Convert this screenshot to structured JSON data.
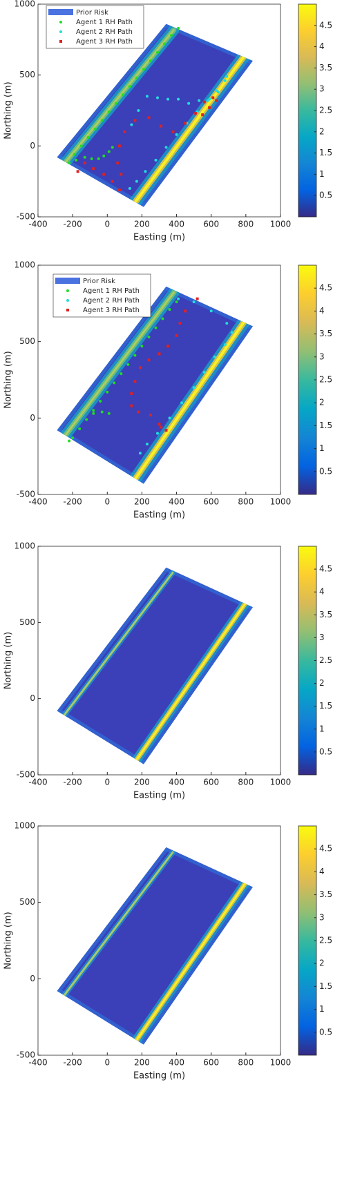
{
  "chart_data": [
    {
      "type": "heatmap",
      "xlabel": "Easting (m)",
      "ylabel": "Northing (m)",
      "xlim": [
        -400,
        1000
      ],
      "xticks": [
        -400,
        -200,
        0,
        200,
        400,
        600,
        800,
        1000
      ],
      "ylim": [
        -500,
        1000
      ],
      "yticks": [
        -500,
        0,
        500,
        1000
      ],
      "clim": [
        0,
        5
      ],
      "cticks": [
        0.5,
        1,
        1.5,
        2,
        2.5,
        3,
        3.5,
        4,
        4.5
      ],
      "legend": "upper left",
      "field": {
        "name": "Prior Risk",
        "color": "#4a72e0",
        "x": [
          -290,
          210,
          840,
          340
        ],
        "y": [
          -80,
          -430,
          600,
          860
        ]
      },
      "series": [
        {
          "name": "Agent 1 RH Path",
          "color": "#22dd22",
          "marker": "circle",
          "x": [
            410,
            370,
            330,
            290,
            250,
            210,
            170,
            130,
            90,
            50,
            10,
            -30,
            -70,
            -110,
            -150,
            -190,
            -220,
            -180,
            -130,
            -90,
            -50,
            -20,
            10,
            30
          ],
          "y": [
            830,
            780,
            720,
            660,
            600,
            540,
            480,
            420,
            360,
            300,
            240,
            180,
            120,
            60,
            0,
            -60,
            -120,
            -100,
            -80,
            -90,
            -90,
            -70,
            -40,
            -10
          ]
        },
        {
          "name": "Agent 2 RH Path",
          "color": "#22dddd",
          "marker": "circle",
          "x": [
            130,
            170,
            220,
            280,
            340,
            400,
            460,
            520,
            580,
            630,
            680,
            690,
            640,
            590,
            530,
            470,
            410,
            350,
            290,
            230,
            180,
            140
          ],
          "y": [
            -300,
            -250,
            -180,
            -100,
            -10,
            80,
            160,
            240,
            320,
            390,
            460,
            490,
            380,
            330,
            320,
            300,
            330,
            330,
            340,
            350,
            250,
            150
          ]
        },
        {
          "name": "Agent 3 RH Path",
          "color": "#dd2222",
          "marker": "square",
          "x": [
            -170,
            -130,
            -80,
            -20,
            30,
            70,
            80,
            60,
            70,
            100,
            160,
            240,
            310,
            380,
            450,
            510,
            560,
            610,
            630,
            590,
            550
          ],
          "y": [
            -180,
            -120,
            -160,
            -200,
            -250,
            -310,
            -200,
            -120,
            0,
            100,
            180,
            200,
            140,
            100,
            160,
            230,
            310,
            340,
            320,
            270,
            220
          ]
        }
      ]
    },
    {
      "type": "heatmap",
      "xlabel": "Easting (m)",
      "ylabel": "Northing (m)",
      "xlim": [
        -400,
        1000
      ],
      "xticks": [
        -400,
        -200,
        0,
        200,
        400,
        600,
        800,
        1000
      ],
      "ylim": [
        -500,
        1000
      ],
      "yticks": [
        -500,
        0,
        500,
        1000
      ],
      "clim": [
        0,
        5
      ],
      "cticks": [
        0.5,
        1,
        1.5,
        2,
        2.5,
        3,
        3.5,
        4,
        4.5
      ],
      "legend": "upper left",
      "field": {
        "name": "Prior Risk",
        "color": "#4a72e0",
        "x": [
          -290,
          210,
          840,
          340
        ],
        "y": [
          -80,
          -430,
          600,
          860
        ]
      },
      "series": [
        {
          "name": "Agent 1 RH Path",
          "color": "#22dd22",
          "marker": "circle",
          "x": [
            400,
            360,
            320,
            280,
            240,
            200,
            160,
            120,
            80,
            40,
            0,
            -40,
            -80,
            -120,
            -160,
            -200,
            -220,
            -80,
            -30,
            10
          ],
          "y": [
            760,
            710,
            650,
            590,
            530,
            470,
            410,
            350,
            290,
            230,
            170,
            110,
            50,
            -10,
            -70,
            -130,
            -150,
            30,
            40,
            30
          ]
        },
        {
          "name": "Agent 2 RH Path",
          "color": "#22dddd",
          "marker": "circle",
          "x": [
            410,
            500,
            600,
            690,
            720,
            680,
            620,
            560,
            500,
            430,
            360,
            290,
            230,
            190
          ],
          "y": [
            780,
            760,
            700,
            620,
            560,
            480,
            400,
            300,
            200,
            100,
            0,
            -100,
            -170,
            -230
          ]
        },
        {
          "name": "Agent 3 RH Path",
          "color": "#dd2222",
          "marker": "square",
          "x": [
            520,
            450,
            420,
            400,
            350,
            300,
            240,
            190,
            160,
            140,
            140,
            180,
            250,
            300,
            340,
            310
          ],
          "y": [
            780,
            700,
            620,
            540,
            470,
            420,
            380,
            330,
            240,
            160,
            80,
            40,
            20,
            -40,
            -80,
            -60
          ]
        }
      ]
    },
    {
      "type": "heatmap",
      "xlabel": "Easting (m)",
      "ylabel": "Northing (m)",
      "xlim": [
        -400,
        1000
      ],
      "xticks": [
        -400,
        -200,
        0,
        200,
        400,
        600,
        800,
        1000
      ],
      "ylim": [
        -500,
        1000
      ],
      "yticks": [
        -500,
        0,
        500,
        1000
      ],
      "clim": [
        0,
        5
      ],
      "cticks": [
        0.5,
        1,
        1.5,
        2,
        2.5,
        3,
        3.5,
        4,
        4.5
      ],
      "field": {
        "x": [
          -290,
          210,
          840,
          340
        ],
        "y": [
          -80,
          -430,
          600,
          860
        ]
      }
    },
    {
      "type": "heatmap",
      "xlabel": "Easting (m)",
      "ylabel": "Northing (m)",
      "xlim": [
        -400,
        1000
      ],
      "xticks": [
        -400,
        -200,
        0,
        200,
        400,
        600,
        800,
        1000
      ],
      "ylim": [
        -500,
        1000
      ],
      "yticks": [
        -500,
        0,
        500,
        1000
      ],
      "clim": [
        0,
        5
      ],
      "cticks": [
        0.5,
        1,
        1.5,
        2,
        2.5,
        3,
        3.5,
        4,
        4.5
      ],
      "field": {
        "x": [
          -290,
          210,
          840,
          340
        ],
        "y": [
          -80,
          -430,
          600,
          860
        ]
      }
    }
  ]
}
